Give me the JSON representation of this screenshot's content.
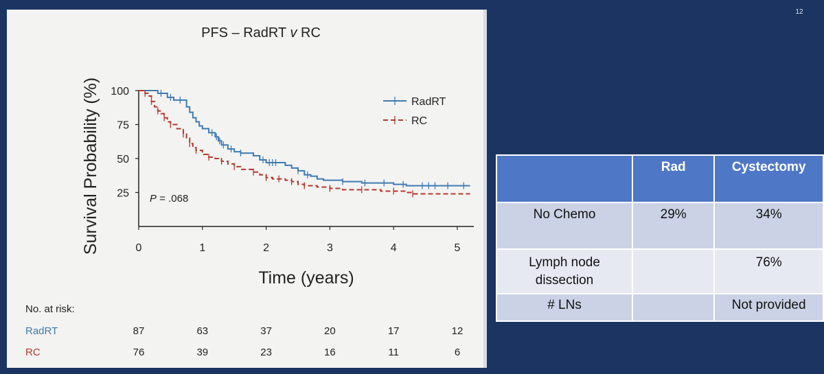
{
  "slide": {
    "number": "12"
  },
  "chart_data": {
    "type": "line",
    "title_parts": {
      "prefix": "PFS – RadRT ",
      "italic": "v",
      "suffix": " RC"
    },
    "xlabel": "Time (years)",
    "ylabel": "Survival Probability (%)",
    "xlim": [
      0,
      5.2
    ],
    "ylim": [
      0,
      100
    ],
    "xticks": [
      0,
      1,
      2,
      3,
      4,
      5
    ],
    "yticks": [
      25,
      50,
      75,
      100
    ],
    "grid": false,
    "legend_position": "top-right",
    "annotation": {
      "italic": "P",
      "text": " = .068"
    },
    "series": [
      {
        "name": "RadRT",
        "color": "#3f7ab3",
        "dash": "solid",
        "x": [
          0,
          0.15,
          0.3,
          0.45,
          0.55,
          0.7,
          0.75,
          0.8,
          0.85,
          0.9,
          0.95,
          1.0,
          1.1,
          1.2,
          1.25,
          1.3,
          1.4,
          1.5,
          1.6,
          1.8,
          1.9,
          2.0,
          2.2,
          2.3,
          2.4,
          2.5,
          2.6,
          2.7,
          2.8,
          2.9,
          3.0,
          3.2,
          3.5,
          3.8,
          4.0,
          4.2,
          4.5,
          5.0,
          5.2
        ],
        "y": [
          100,
          100,
          98,
          95,
          93,
          93,
          88,
          84,
          80,
          77,
          74,
          72,
          69,
          66,
          63,
          60,
          57,
          55,
          54,
          52,
          49,
          47,
          47,
          45,
          43,
          41,
          38,
          37,
          35,
          34,
          34,
          33,
          32,
          32,
          31,
          30,
          30,
          30,
          30
        ],
        "censor_x": [
          0.35,
          0.5,
          0.65,
          1.15,
          1.22,
          1.27,
          1.33,
          1.45,
          1.6,
          1.95,
          2.05,
          2.1,
          2.15,
          2.5,
          2.65,
          3.2,
          3.55,
          3.85,
          4.15,
          4.45,
          4.55,
          4.65,
          4.85,
          5.1
        ]
      },
      {
        "name": "RC",
        "color": "#b03a2e",
        "dash": "dashed",
        "x": [
          0,
          0.1,
          0.15,
          0.2,
          0.25,
          0.3,
          0.35,
          0.4,
          0.45,
          0.5,
          0.6,
          0.7,
          0.75,
          0.8,
          0.85,
          0.9,
          1.0,
          1.1,
          1.2,
          1.3,
          1.4,
          1.5,
          1.6,
          1.8,
          1.9,
          2.0,
          2.1,
          2.2,
          2.3,
          2.4,
          2.5,
          2.6,
          2.8,
          3.0,
          3.2,
          3.5,
          3.8,
          4.0,
          4.2,
          4.3,
          5.2
        ],
        "y": [
          100,
          98,
          96,
          92,
          88,
          85,
          83,
          80,
          77,
          75,
          72,
          68,
          65,
          61,
          58,
          56,
          53,
          51,
          50,
          48,
          46,
          44,
          42,
          40,
          38,
          36,
          35,
          35,
          34,
          33,
          31,
          30,
          29,
          28,
          27,
          27,
          26,
          26,
          25,
          24,
          24
        ]
      }
    ],
    "risk_table": {
      "header": "No. at risk:",
      "times": [
        0,
        1,
        2,
        3,
        4,
        5
      ],
      "rows": [
        {
          "name": "RadRT",
          "color": "#3f7ab3",
          "counts": [
            "87",
            "63",
            "37",
            "20",
            "17",
            "12"
          ]
        },
        {
          "name": "RC",
          "color": "#b03a2e",
          "counts": [
            "76",
            "39",
            "23",
            "16",
            "11",
            "6"
          ]
        }
      ]
    }
  },
  "table": {
    "headers": [
      "",
      "Rad",
      "Cystectomy"
    ],
    "rows": [
      [
        "No Chemo",
        "29%",
        "34%"
      ],
      [
        "Lymph node dissection",
        "",
        "76%"
      ],
      [
        "# LNs",
        "",
        "Not provided"
      ]
    ]
  }
}
